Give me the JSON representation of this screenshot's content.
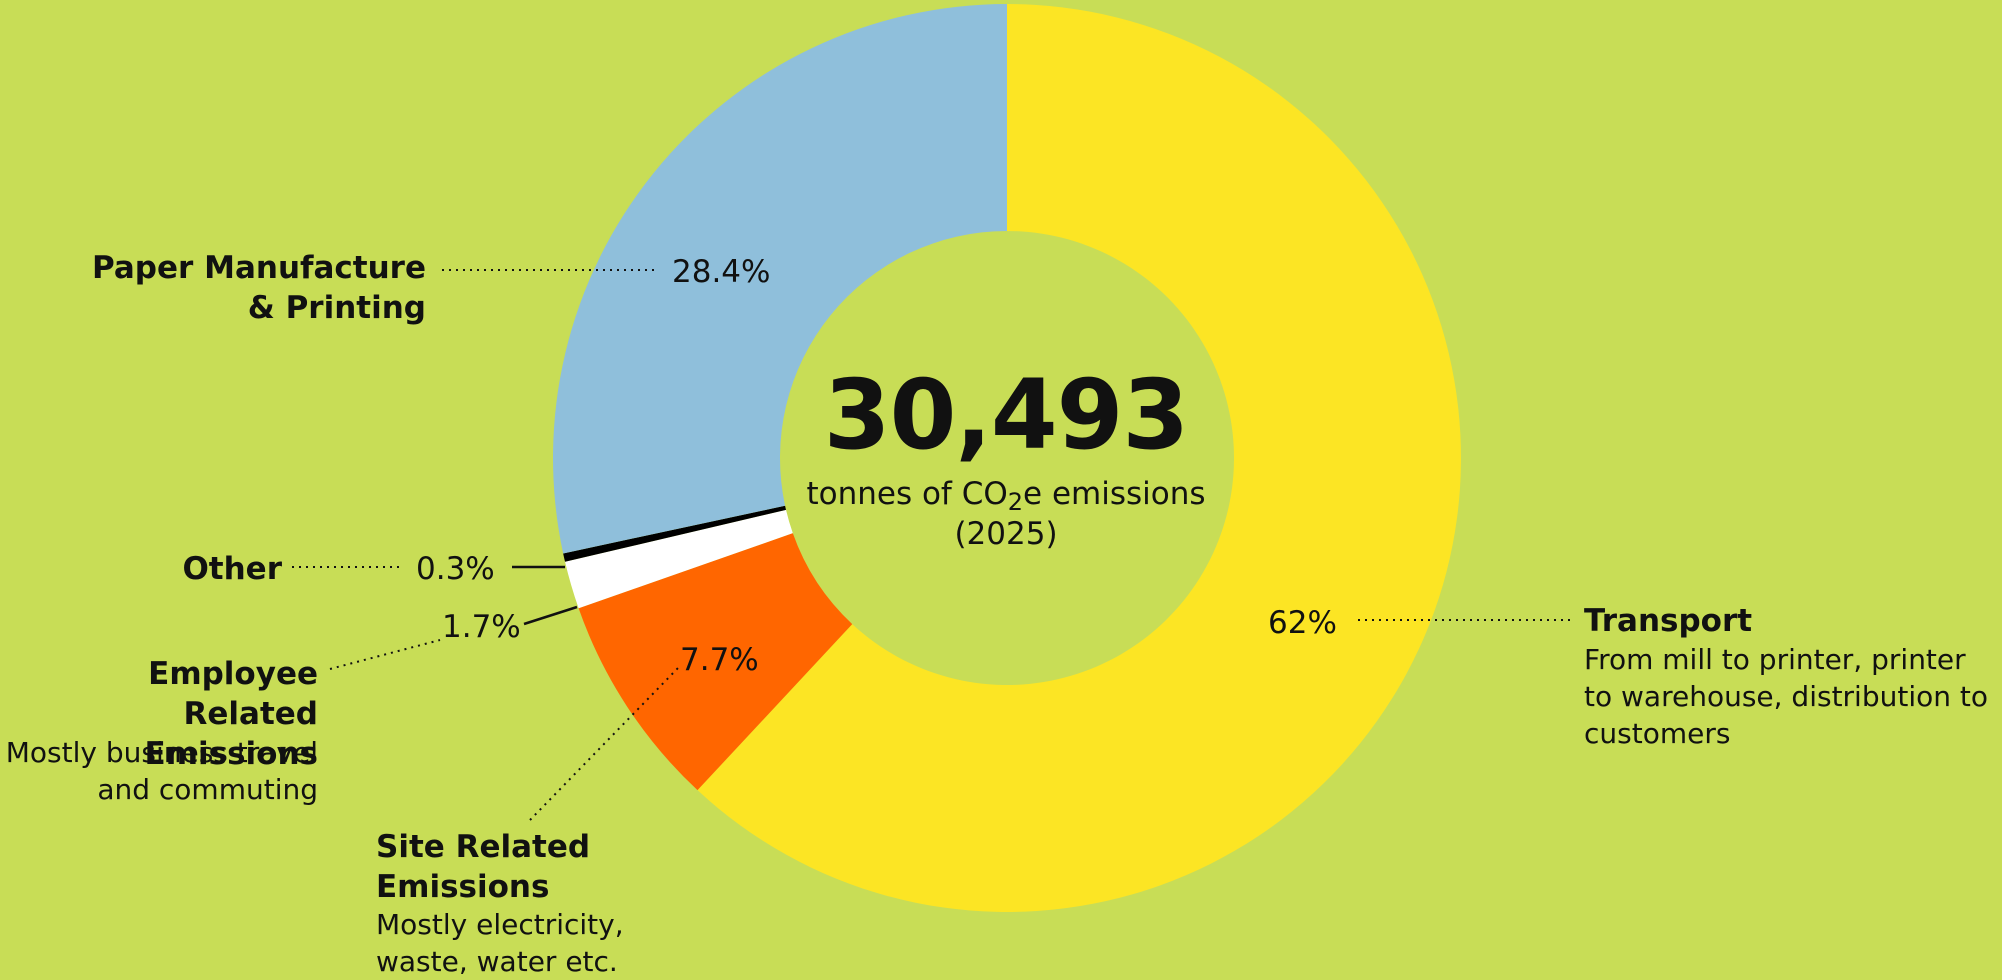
{
  "chart_data": {
    "type": "pie",
    "style": "donut",
    "center_value": "30,493",
    "center_label": {
      "before_sub": "tonnes of CO",
      "sub": "2",
      "after_sub": "e emissions",
      "line2": "(2025)"
    },
    "slices": [
      {
        "name": "Transport",
        "value": 62,
        "label": "62%",
        "description": "From mill to printer, printer to warehouse, distribution to customers",
        "color": "#fce524"
      },
      {
        "name": "Site Related Emissions",
        "value": 7.7,
        "label": "7.7%",
        "description": "Mostly electricity, waste, water etc.",
        "color": "#ff6600"
      },
      {
        "name": "Employee Related Emissions",
        "value": 1.7,
        "label": "1.7%",
        "description": "Mostly business travel and commuting",
        "color": "#ffffff"
      },
      {
        "name": "Other",
        "value": 0.3,
        "label": "0.3%",
        "description": "",
        "color": "#000000"
      },
      {
        "name": "Paper Manufacture & Printing",
        "value": 28.4,
        "label": "28.4%",
        "description": "",
        "color": "#8fbfdb"
      }
    ],
    "background_color": "#c8dd56"
  }
}
